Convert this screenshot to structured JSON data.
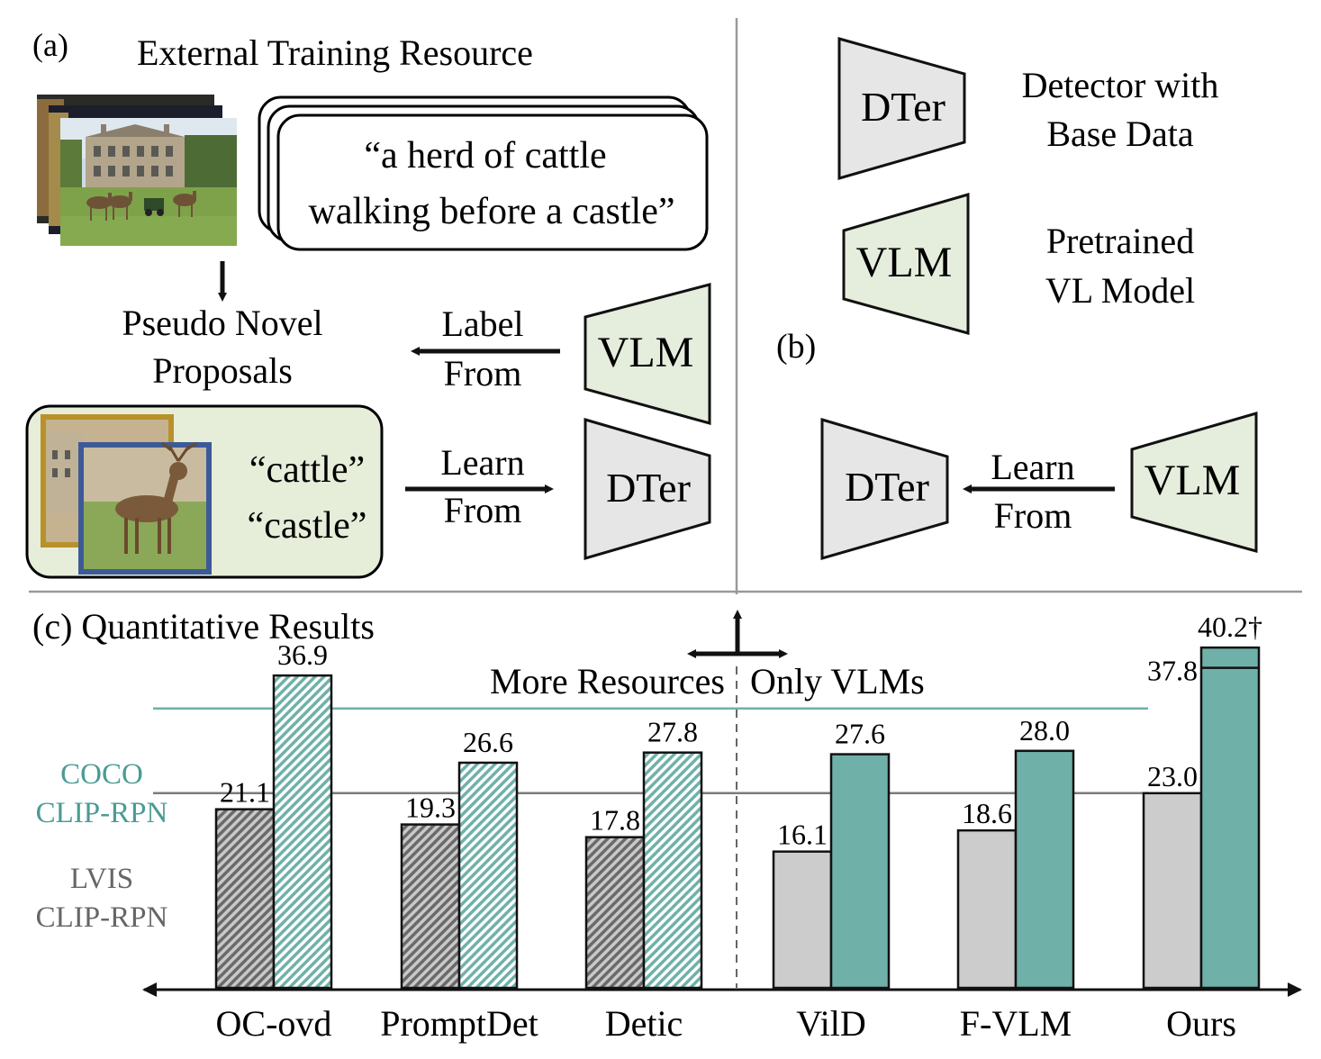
{
  "panel_a": {
    "label": "(a)",
    "title": "External Training Resource",
    "caption_line1": "“a herd of cattle",
    "caption_line2": "walking before a castle”",
    "pseudo_line1": "Pseudo Novel",
    "pseudo_line2": "Proposals",
    "label_from_1": "Label",
    "label_from_2": "From",
    "vlm": "VLM",
    "learn_from_1": "Learn",
    "learn_from_2": "From",
    "dter": "DTer",
    "crop_word1": "“cattle”",
    "crop_word2": "“castle”"
  },
  "panel_b": {
    "label": "(b)",
    "legend_dter": "DTer",
    "legend_dter_desc1": "Detector with",
    "legend_dter_desc2": "Base Data",
    "legend_vlm": "VLM",
    "legend_vlm_desc1": "Pretrained",
    "legend_vlm_desc2": "VL Model",
    "dter": "DTer",
    "learn_1": "Learn",
    "learn_2": "From",
    "vlm": "VLM"
  },
  "panel_c": {
    "title": "(c) Quantitative Results",
    "more_resources": "More Resources",
    "only_vlms": "Only VLMs",
    "ref_coco_1": "COCO",
    "ref_coco_2": "CLIP-RPN",
    "ref_lvis_1": "LVIS",
    "ref_lvis_2": "CLIP-RPN"
  },
  "colors": {
    "teal": "#6fb1a9",
    "teal_text": "#4a9b94",
    "light_gray": "#cccccc",
    "dark_hatch": "#6a6a6a",
    "vlm_fill": "#e5eddc",
    "dter_fill": "#e6e6e6",
    "crop_box": "#e6edd9"
  },
  "chart_data": {
    "type": "bar",
    "categories": [
      "OC-ovd",
      "PromptDet",
      "Detic",
      "VilD",
      "F-VLM",
      "Ours"
    ],
    "series": [
      {
        "values": [
          21.1,
          19.3,
          17.8,
          16.1,
          18.6,
          23.0
        ]
      },
      {
        "values": [
          36.9,
          26.6,
          27.8,
          27.6,
          28.0,
          40.2
        ]
      }
    ],
    "value_labels": [
      [
        "21.1",
        "19.3",
        "17.8",
        "16.1",
        "18.6",
        "23.0"
      ],
      [
        "36.9",
        "26.6",
        "27.8",
        "27.6",
        "28.0",
        "40.2†"
      ]
    ],
    "ours_inner_value": 37.8,
    "ours_inner_label": "37.8",
    "reference_lines": [
      {
        "value": 23.0
      },
      {
        "value": 33.0
      }
    ],
    "groups": [
      "More Resources",
      "Only VLMs"
    ],
    "hatched_categories": [
      "OC-ovd",
      "PromptDet",
      "Detic"
    ]
  }
}
